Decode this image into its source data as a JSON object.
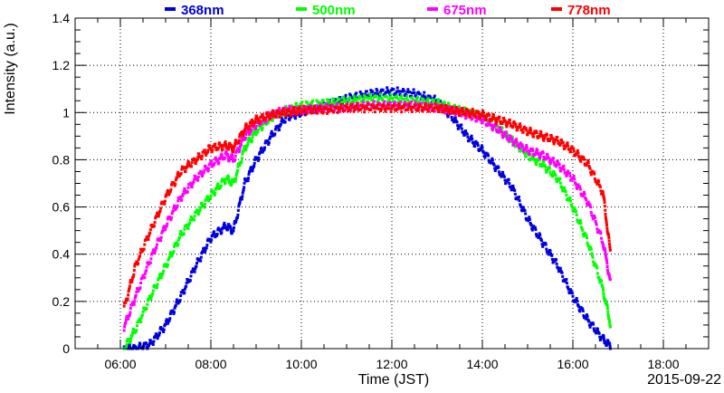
{
  "chart_data": {
    "type": "scatter",
    "title": "",
    "xlabel": "Time (JST)",
    "ylabel": "Intensity (a.u.)",
    "date_label": "2015-09-22",
    "xlim": [
      "05:00",
      "19:00"
    ],
    "ylim": [
      0,
      1.4
    ],
    "grid": true,
    "legend_position": "top",
    "x_ticks": [
      "06:00",
      "08:00",
      "10:00",
      "12:00",
      "14:00",
      "16:00",
      "18:00"
    ],
    "y_ticks": [
      "0",
      "0.2",
      "0.4",
      "0.6",
      "0.8",
      "1",
      "1.2",
      "1.4"
    ],
    "series": [
      {
        "name": "368nm",
        "color": "#0000dd",
        "x": [
          "06:05",
          "06:20",
          "06:40",
          "07:00",
          "07:20",
          "07:40",
          "08:00",
          "08:20",
          "08:30",
          "08:45",
          "09:00",
          "09:20",
          "09:40",
          "10:00",
          "10:30",
          "11:00",
          "11:30",
          "12:00",
          "12:30",
          "13:00",
          "13:20",
          "13:40",
          "14:00",
          "14:20",
          "14:40",
          "15:00",
          "15:20",
          "15:40",
          "16:00",
          "16:20",
          "16:40",
          "16:50"
        ],
        "values": [
          0.0,
          0.0,
          0.02,
          0.1,
          0.22,
          0.35,
          0.47,
          0.52,
          0.5,
          0.7,
          0.8,
          0.9,
          0.98,
          1.0,
          1.03,
          1.06,
          1.08,
          1.09,
          1.08,
          1.05,
          0.98,
          0.9,
          0.84,
          0.76,
          0.68,
          0.55,
          0.45,
          0.35,
          0.22,
          0.12,
          0.04,
          0.01
        ]
      },
      {
        "name": "500nm",
        "color": "#00ff00",
        "x": [
          "06:05",
          "06:20",
          "06:40",
          "07:00",
          "07:20",
          "07:40",
          "08:00",
          "08:20",
          "08:30",
          "08:45",
          "09:00",
          "09:20",
          "09:40",
          "10:00",
          "10:30",
          "11:00",
          "11:30",
          "12:00",
          "12:30",
          "13:00",
          "13:20",
          "13:40",
          "14:00",
          "14:20",
          "14:40",
          "15:00",
          "15:20",
          "15:40",
          "16:00",
          "16:20",
          "16:40",
          "16:50"
        ],
        "values": [
          0.0,
          0.08,
          0.22,
          0.35,
          0.48,
          0.57,
          0.65,
          0.72,
          0.7,
          0.85,
          0.92,
          0.98,
          1.01,
          1.03,
          1.04,
          1.05,
          1.06,
          1.06,
          1.05,
          1.04,
          1.02,
          1.0,
          0.98,
          0.94,
          0.88,
          0.82,
          0.78,
          0.72,
          0.6,
          0.45,
          0.25,
          0.1
        ]
      },
      {
        "name": "675nm",
        "color": "#ff00ff",
        "x": [
          "06:05",
          "06:20",
          "06:40",
          "07:00",
          "07:20",
          "07:40",
          "08:00",
          "08:20",
          "08:30",
          "08:45",
          "09:00",
          "09:20",
          "09:40",
          "10:00",
          "10:30",
          "11:00",
          "11:30",
          "12:00",
          "12:30",
          "13:00",
          "13:20",
          "13:40",
          "14:00",
          "14:20",
          "14:40",
          "15:00",
          "15:20",
          "15:40",
          "16:00",
          "16:20",
          "16:40",
          "16:50"
        ],
        "values": [
          0.09,
          0.22,
          0.38,
          0.52,
          0.64,
          0.72,
          0.78,
          0.82,
          0.8,
          0.9,
          0.95,
          0.99,
          1.01,
          1.01,
          1.02,
          1.02,
          1.03,
          1.03,
          1.03,
          1.02,
          1.01,
          0.99,
          0.97,
          0.93,
          0.88,
          0.84,
          0.82,
          0.78,
          0.72,
          0.62,
          0.45,
          0.28
        ]
      },
      {
        "name": "778nm",
        "color": "#ff0000",
        "x": [
          "06:05",
          "06:20",
          "06:40",
          "07:00",
          "07:20",
          "07:40",
          "08:00",
          "08:20",
          "08:30",
          "08:45",
          "09:00",
          "09:20",
          "09:40",
          "10:00",
          "10:30",
          "11:00",
          "11:30",
          "12:00",
          "12:30",
          "13:00",
          "13:20",
          "13:40",
          "14:00",
          "14:20",
          "14:40",
          "15:00",
          "15:20",
          "15:40",
          "16:00",
          "16:20",
          "16:40",
          "16:50"
        ],
        "values": [
          0.17,
          0.35,
          0.5,
          0.64,
          0.75,
          0.8,
          0.85,
          0.86,
          0.85,
          0.93,
          0.97,
          0.99,
          1.0,
          1.01,
          1.01,
          1.02,
          1.02,
          1.02,
          1.02,
          1.02,
          1.01,
          1.0,
          0.99,
          0.97,
          0.95,
          0.92,
          0.9,
          0.88,
          0.84,
          0.78,
          0.66,
          0.4
        ]
      }
    ]
  }
}
